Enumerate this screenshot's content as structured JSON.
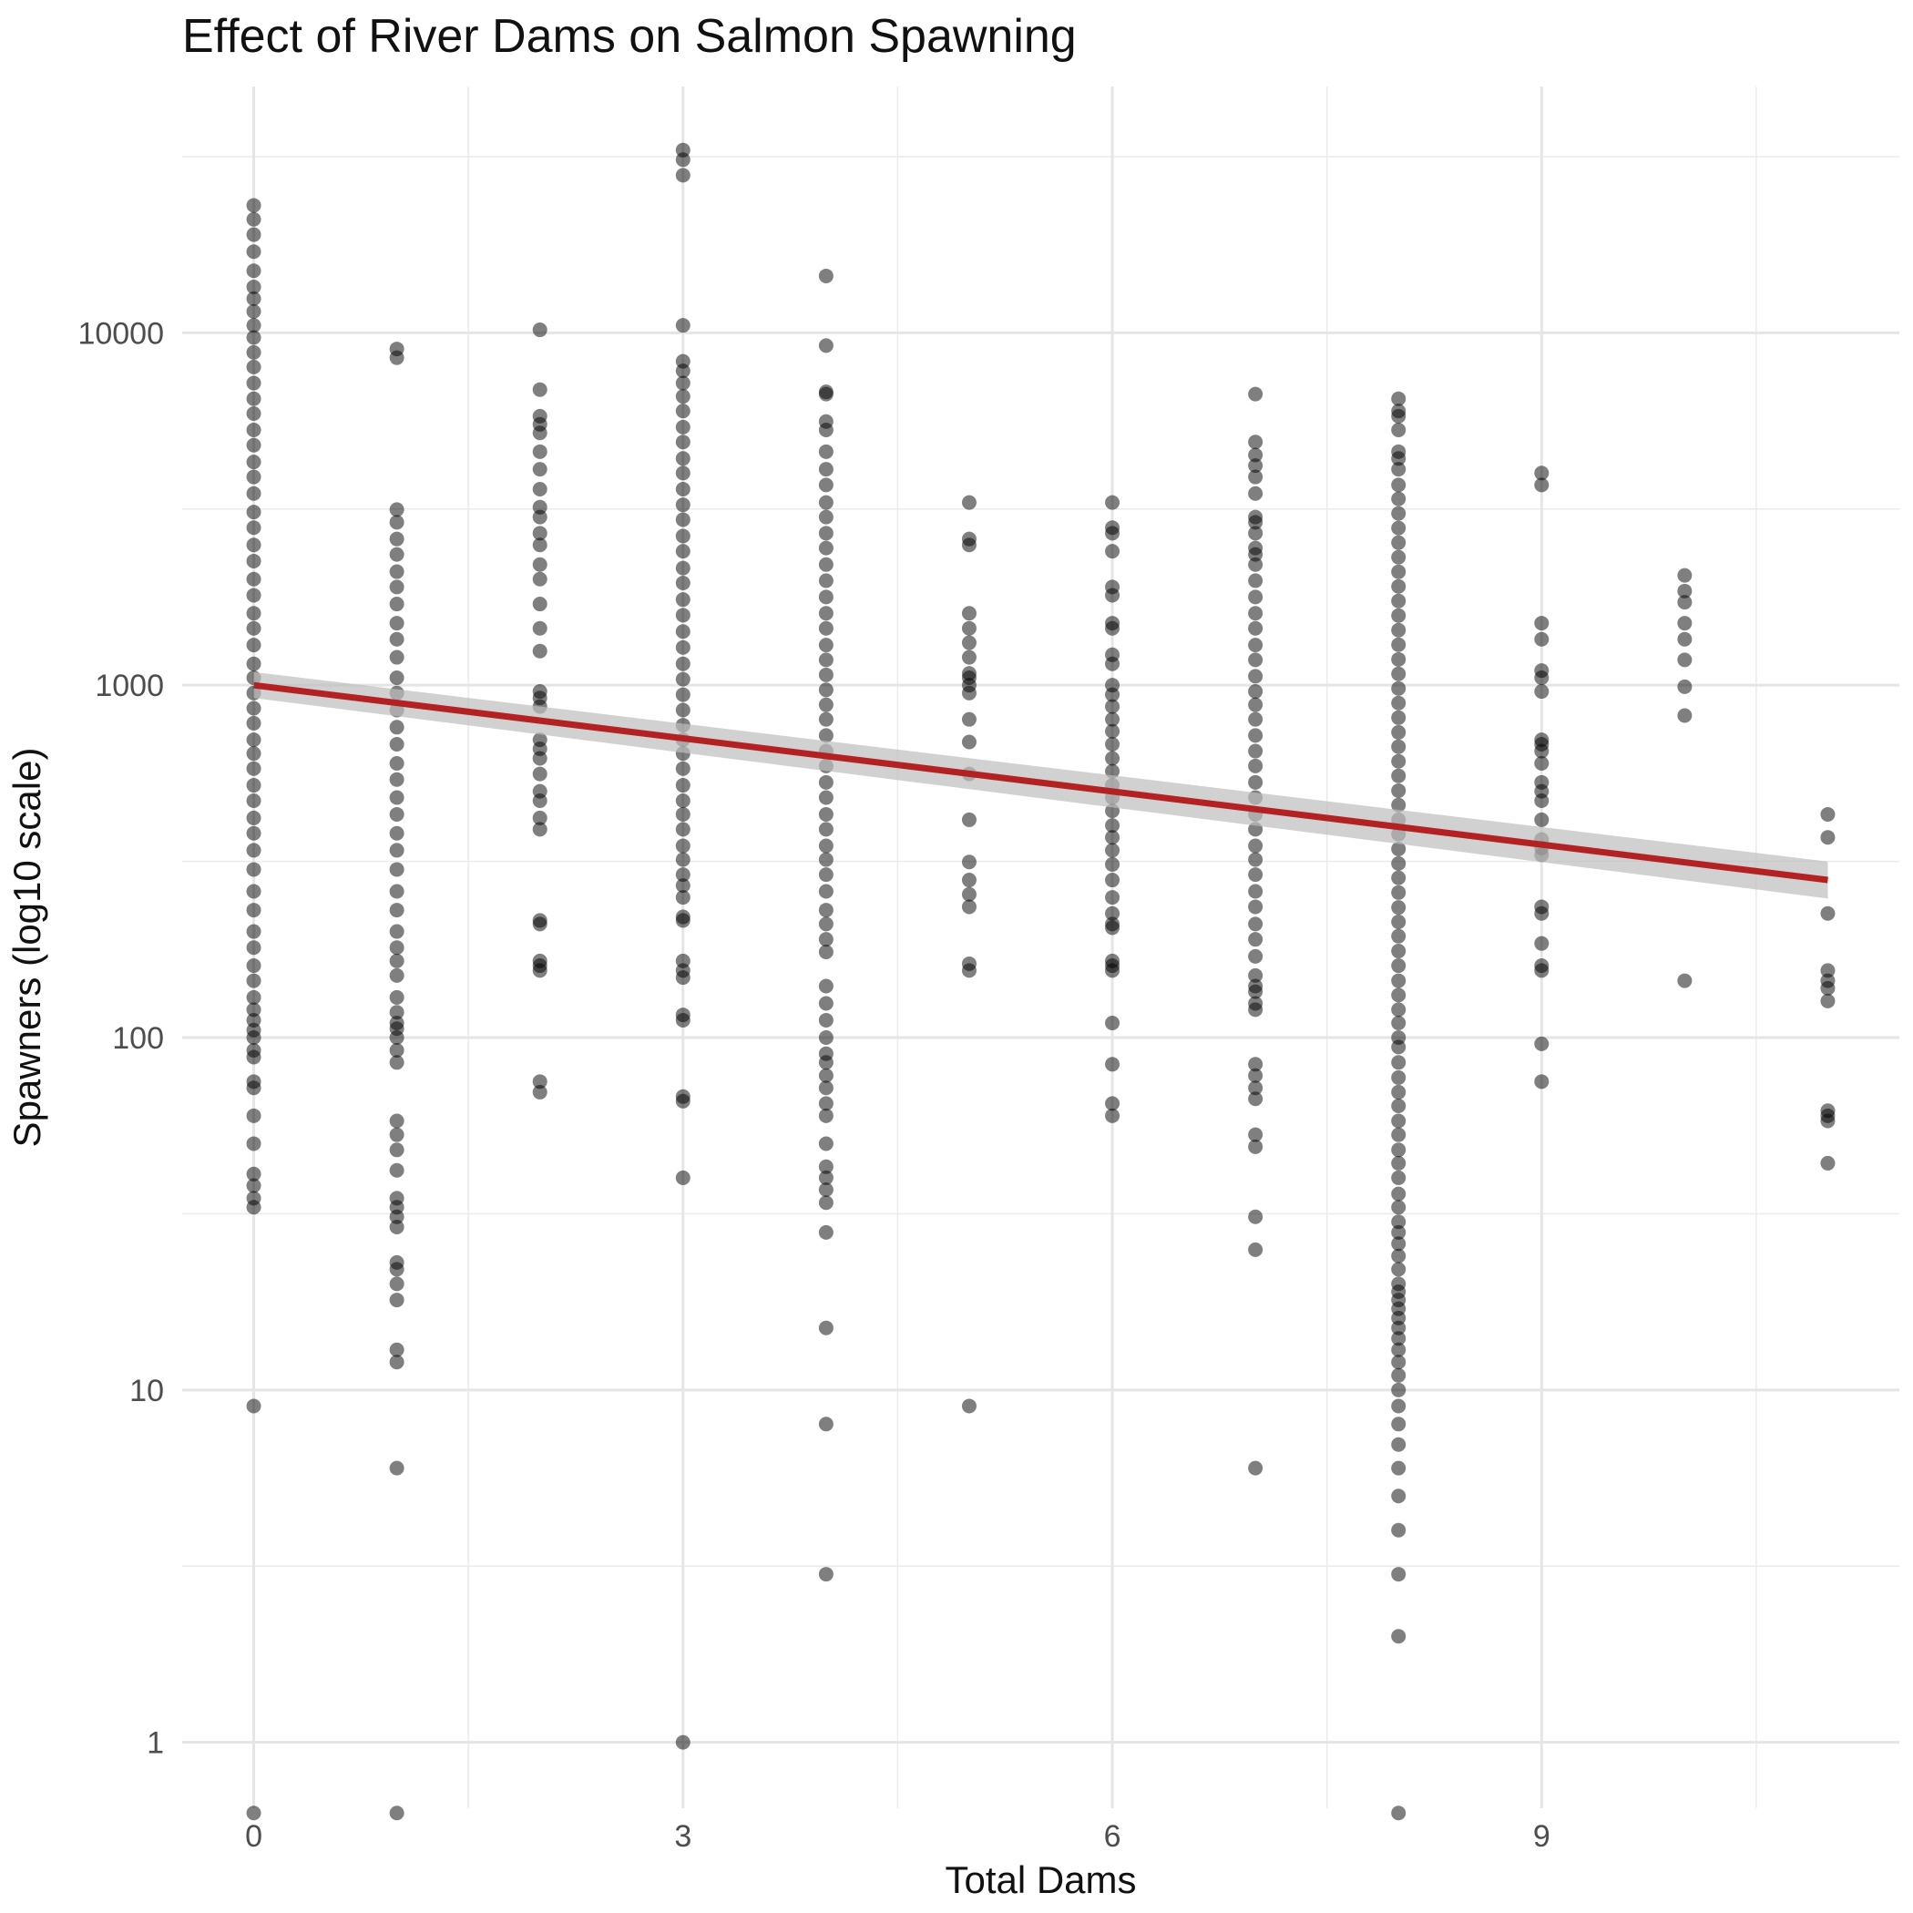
{
  "chart_data": {
    "type": "scatter",
    "title": "Effect of River Dams on Salmon Spawning",
    "xlabel": "Total Dams",
    "ylabel": "Spawners (log10 scale)",
    "x_scale": "linear",
    "y_scale": "log10",
    "xlim": [
      -0.5,
      11.5
    ],
    "ylim": [
      0.65,
      50000
    ],
    "x_ticks": [
      0,
      3,
      6,
      9
    ],
    "y_ticks": [
      1,
      10,
      100,
      1000,
      10000
    ],
    "y_tick_labels": [
      "1",
      "10",
      "100",
      "1000",
      "10000"
    ],
    "grid": true,
    "legend": "none",
    "point_color": "#000000",
    "point_opacity": 0.5,
    "trend_color": "#b22222",
    "ribbon_color": "#bdbdbd",
    "trend": {
      "x": [
        0,
        11
      ],
      "y": [
        1000,
        280
      ],
      "ci_lower": [
        920,
        248
      ],
      "ci_upper": [
        1090,
        316
      ]
    },
    "groups": [
      {
        "x": 0,
        "y": [
          0.63,
          9,
          33,
          35,
          38,
          41,
          50,
          60,
          72,
          75,
          88,
          92,
          100,
          105,
          112,
          120,
          130,
          145,
          160,
          180,
          200,
          230,
          260,
          300,
          340,
          380,
          420,
          470,
          520,
          580,
          640,
          700,
          780,
          860,
          950,
          1050,
          1150,
          1300,
          1450,
          1600,
          1800,
          2000,
          2250,
          2500,
          2800,
          3100,
          3500,
          3900,
          4300,
          4800,
          5300,
          5900,
          6500,
          7200,
          8000,
          8800,
          9700,
          10500,
          11500,
          12500,
          13500,
          15000,
          17000,
          19000,
          21000,
          23000
        ]
      },
      {
        "x": 1,
        "y": [
          0.63,
          6,
          12,
          13,
          18,
          20,
          22,
          23,
          29,
          31,
          33,
          35,
          42,
          48,
          53,
          58,
          85,
          92,
          100,
          106,
          110,
          118,
          130,
          150,
          165,
          180,
          200,
          230,
          260,
          300,
          340,
          380,
          430,
          480,
          540,
          600,
          680,
          760,
          850,
          950,
          1050,
          1200,
          1350,
          1500,
          1700,
          1900,
          2100,
          2350,
          2600,
          2900,
          3150,
          8500,
          9000
        ]
      },
      {
        "x": 2,
        "y": [
          70,
          75,
          155,
          160,
          165,
          210,
          215,
          390,
          420,
          470,
          500,
          560,
          620,
          660,
          700,
          870,
          920,
          960,
          1250,
          1450,
          1700,
          2000,
          2200,
          2500,
          2700,
          3000,
          3200,
          3600,
          4100,
          4600,
          5200,
          5500,
          5800,
          6900,
          10200
        ]
      },
      {
        "x": 3,
        "y": [
          1,
          40,
          66,
          68,
          112,
          116,
          148,
          155,
          165,
          215,
          220,
          250,
          270,
          290,
          320,
          350,
          390,
          430,
          470,
          520,
          580,
          640,
          700,
          770,
          850,
          940,
          1040,
          1150,
          1280,
          1420,
          1580,
          1750,
          1950,
          2150,
          2400,
          2650,
          2950,
          3250,
          3600,
          4000,
          4400,
          4900,
          5400,
          6000,
          6600,
          7200,
          7800,
          8300,
          10500,
          28000,
          31000,
          33000
        ]
      },
      {
        "x": 4,
        "y": [
          3,
          8,
          15,
          28,
          34,
          37,
          40,
          43,
          50,
          60,
          65,
          72,
          78,
          85,
          90,
          100,
          112,
          125,
          140,
          175,
          190,
          210,
          230,
          260,
          290,
          320,
          350,
          390,
          430,
          480,
          530,
          590,
          650,
          720,
          800,
          880,
          970,
          1070,
          1180,
          1300,
          1450,
          1600,
          1780,
          1980,
          2200,
          2450,
          2700,
          3000,
          3300,
          3700,
          4100,
          4600,
          5300,
          5600,
          6700,
          6800,
          9200,
          14500
        ]
      },
      {
        "x": 5,
        "y": [
          9,
          155,
          162,
          235,
          255,
          280,
          315,
          415,
          560,
          690,
          800,
          950,
          1000,
          1050,
          1080,
          1200,
          1320,
          1450,
          1600,
          2500,
          2600,
          3300
        ]
      },
      {
        "x": 6,
        "y": [
          60,
          65,
          84,
          110,
          155,
          160,
          165,
          205,
          210,
          225,
          250,
          280,
          310,
          340,
          370,
          400,
          440,
          480,
          520,
          570,
          620,
          680,
          740,
          800,
          870,
          940,
          1000,
          1150,
          1220,
          1450,
          1500,
          1800,
          1900,
          2400,
          2700,
          2800,
          3300
        ]
      },
      {
        "x": 7,
        "y": [
          6,
          25,
          31,
          49,
          53,
          67,
          72,
          78,
          84,
          120,
          125,
          135,
          140,
          150,
          170,
          190,
          210,
          235,
          260,
          290,
          320,
          350,
          390,
          430,
          480,
          530,
          590,
          650,
          720,
          800,
          880,
          960,
          1060,
          1180,
          1300,
          1450,
          1600,
          1780,
          1980,
          2200,
          2350,
          2450,
          2700,
          2900,
          3000,
          3500,
          3900,
          4200,
          4500,
          4900,
          6700
        ]
      },
      {
        "x": 8,
        "y": [
          0.63,
          2,
          3,
          4,
          5,
          6,
          7,
          8,
          9,
          10,
          11,
          12,
          13,
          14,
          15,
          16,
          17,
          18,
          19,
          20,
          22,
          24,
          26,
          28,
          30,
          33,
          36,
          40,
          44,
          48,
          53,
          58,
          64,
          70,
          77,
          85,
          94,
          100,
          110,
          120,
          132,
          145,
          160,
          176,
          194,
          213,
          234,
          258,
          284,
          312,
          343,
          378,
          415,
          457,
          502,
          553,
          608,
          669,
          735,
          809,
          890,
          979,
          1077,
          1184,
          1303,
          1433,
          1576,
          1734,
          1907,
          2098,
          2308,
          2539,
          2793,
          3072,
          3379,
          3700,
          4100,
          4400,
          4600,
          5300,
          5800,
          6000,
          6500
        ]
      },
      {
        "x": 9,
        "y": [
          75,
          96,
          155,
          160,
          185,
          225,
          235,
          330,
          345,
          365,
          415,
          470,
          500,
          530,
          600,
          650,
          680,
          700,
          960,
          1050,
          1100,
          1350,
          1500,
          3700,
          4000
        ]
      },
      {
        "x": 10,
        "y": [
          145,
          820,
          990,
          1180,
          1350,
          1500,
          1720,
          1850,
          2050
        ]
      },
      {
        "x": 11,
        "y": [
          44,
          58,
          60,
          62,
          127,
          138,
          145,
          155,
          225,
          370,
          430
        ]
      }
    ]
  }
}
